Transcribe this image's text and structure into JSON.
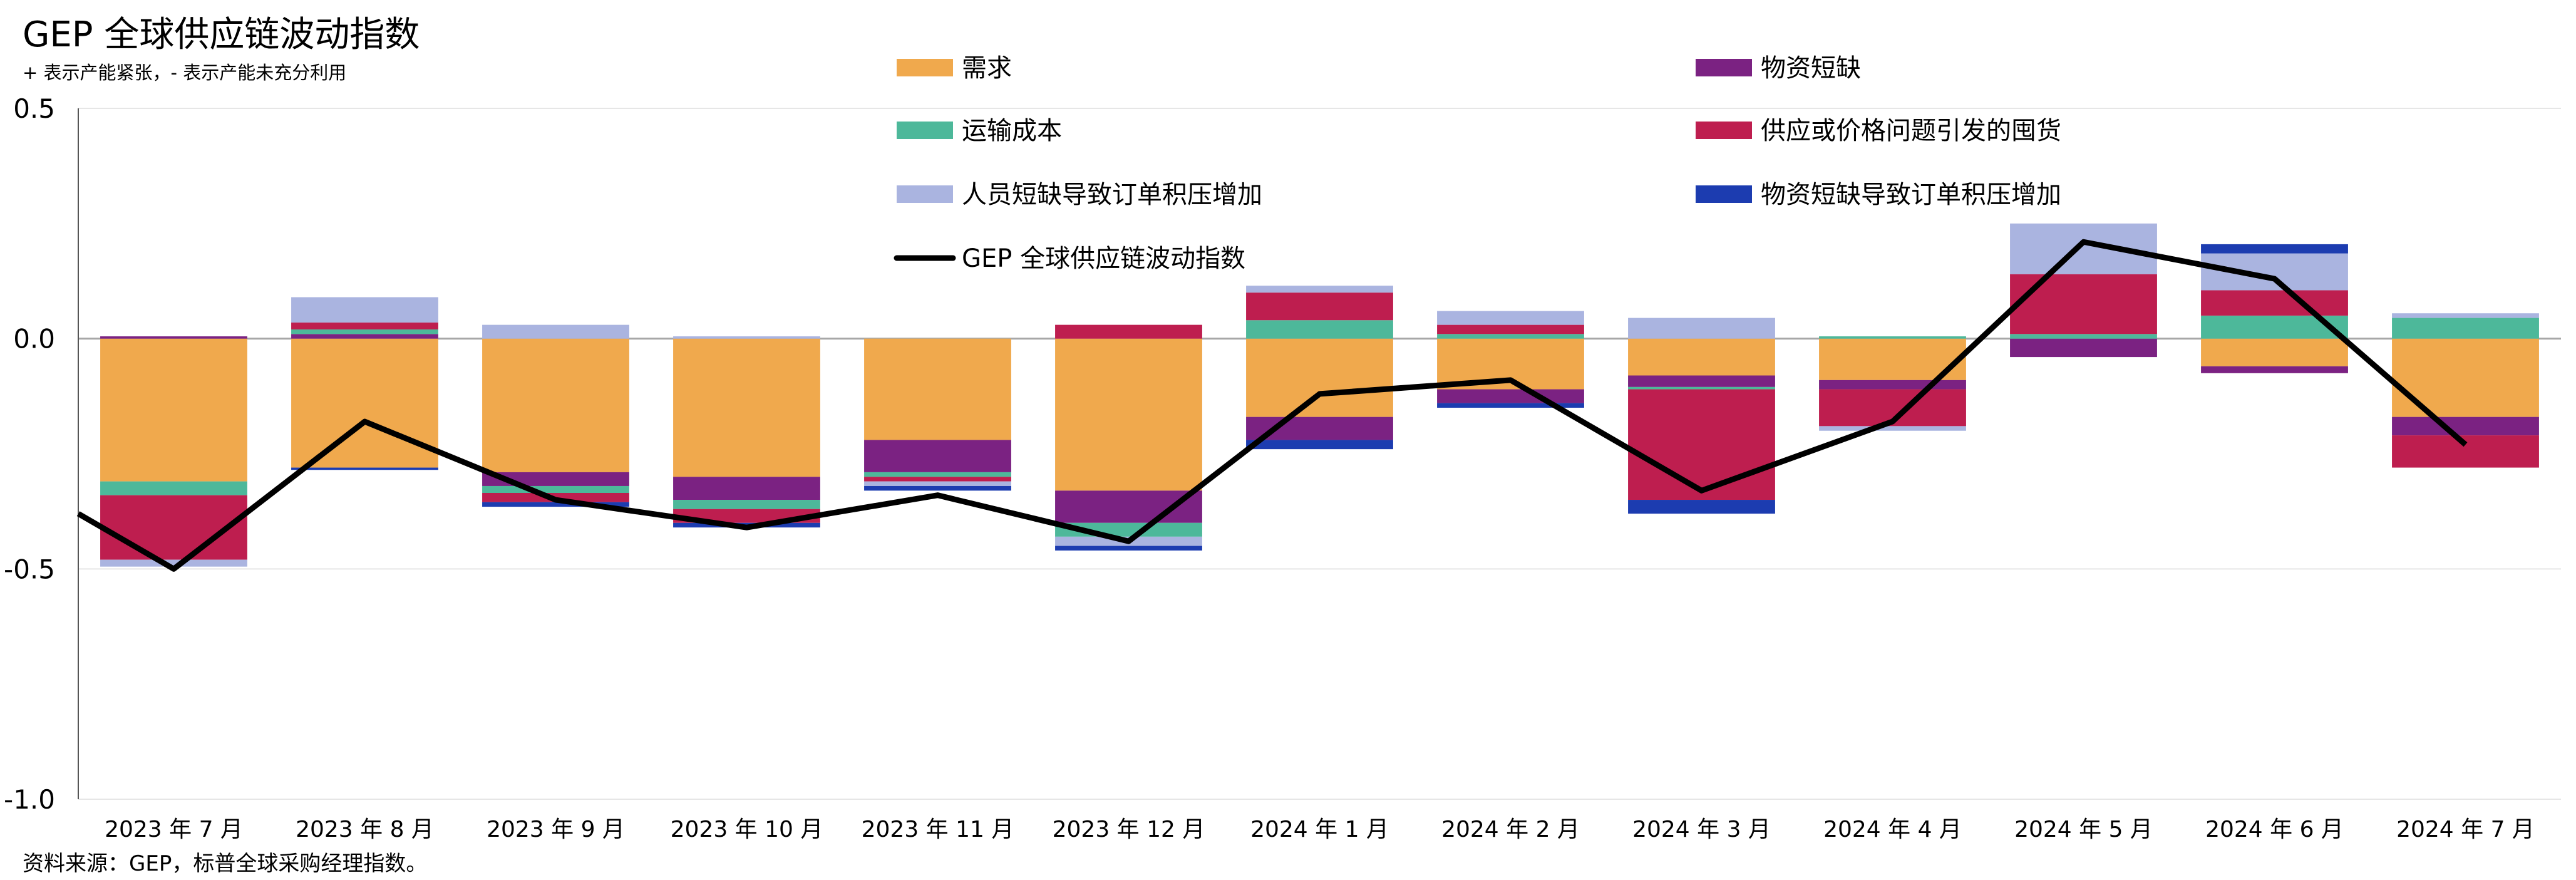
{
  "chart_data": {
    "type": "bar",
    "stacked": true,
    "title": "GEP 全球供应链波动指数",
    "subtitle": "+ 表示产能紧张，- 表示产能未充分利用",
    "footnote": "资料来源：GEP，标普全球采购经理指数。",
    "ylim": [
      -1.0,
      0.5
    ],
    "yticks": [
      {
        "value": 0.5,
        "label": "0.5"
      },
      {
        "value": 0.0,
        "label": "0.0"
      },
      {
        "value": -0.5,
        "label": "-0.5"
      },
      {
        "value": -1.0,
        "label": "-1.0"
      }
    ],
    "grid": true,
    "legend_position": "top",
    "categories": [
      "2023 年 7 月",
      "2023 年 8 月",
      "2023 年 9 月",
      "2023 年 10 月",
      "2023 年 11 月",
      "2023 年 12 月",
      "2024 年 1 月",
      "2024 年 2 月",
      "2024 年 3 月",
      "2024 年 4 月",
      "2024 年 5 月",
      "2024 年 6 月",
      "2024 年 7 月"
    ],
    "series": [
      {
        "name": "需求",
        "color": "#F0A94D",
        "values": [
          -0.31,
          -0.28,
          -0.29,
          -0.3,
          -0.22,
          -0.33,
          -0.17,
          -0.11,
          -0.08,
          -0.09,
          0.0,
          -0.06,
          -0.17
        ]
      },
      {
        "name": "物资短缺",
        "color": "#7B2282",
        "values": [
          0.005,
          0.01,
          -0.03,
          -0.05,
          -0.07,
          -0.07,
          -0.05,
          -0.03,
          -0.025,
          -0.02,
          -0.04,
          -0.015,
          -0.04
        ]
      },
      {
        "name": "运输成本",
        "color": "#4DB89A",
        "values": [
          -0.03,
          0.01,
          -0.015,
          -0.02,
          -0.01,
          -0.03,
          0.04,
          0.01,
          -0.005,
          0.005,
          0.01,
          0.05,
          0.045
        ]
      },
      {
        "name": "供应或价格问题引发的囤货",
        "color": "#BE1E4F",
        "values": [
          -0.14,
          0.015,
          -0.02,
          -0.03,
          -0.01,
          0.03,
          0.06,
          0.02,
          -0.24,
          -0.08,
          0.13,
          0.055,
          -0.07
        ]
      },
      {
        "name": "人员短缺导致订单积压增加",
        "color": "#AAB4E0",
        "values": [
          -0.015,
          0.055,
          0.03,
          0.005,
          -0.01,
          -0.02,
          0.015,
          0.03,
          0.045,
          -0.01,
          0.11,
          0.08,
          0.01
        ]
      },
      {
        "name": "物资短缺导致订单积压增加",
        "color": "#1C3CB0",
        "values": [
          0.0,
          -0.005,
          -0.01,
          -0.01,
          -0.01,
          -0.01,
          -0.02,
          -0.01,
          -0.03,
          0.0,
          0.0,
          0.02,
          0.0
        ]
      }
    ],
    "line": {
      "name": "GEP 全球供应链波动指数",
      "color": "#000000",
      "values": [
        -0.5,
        -0.18,
        -0.35,
        -0.41,
        -0.34,
        -0.44,
        -0.12,
        -0.09,
        -0.33,
        -0.18,
        0.21,
        0.13,
        -0.23
      ],
      "start_value": -0.38
    }
  }
}
